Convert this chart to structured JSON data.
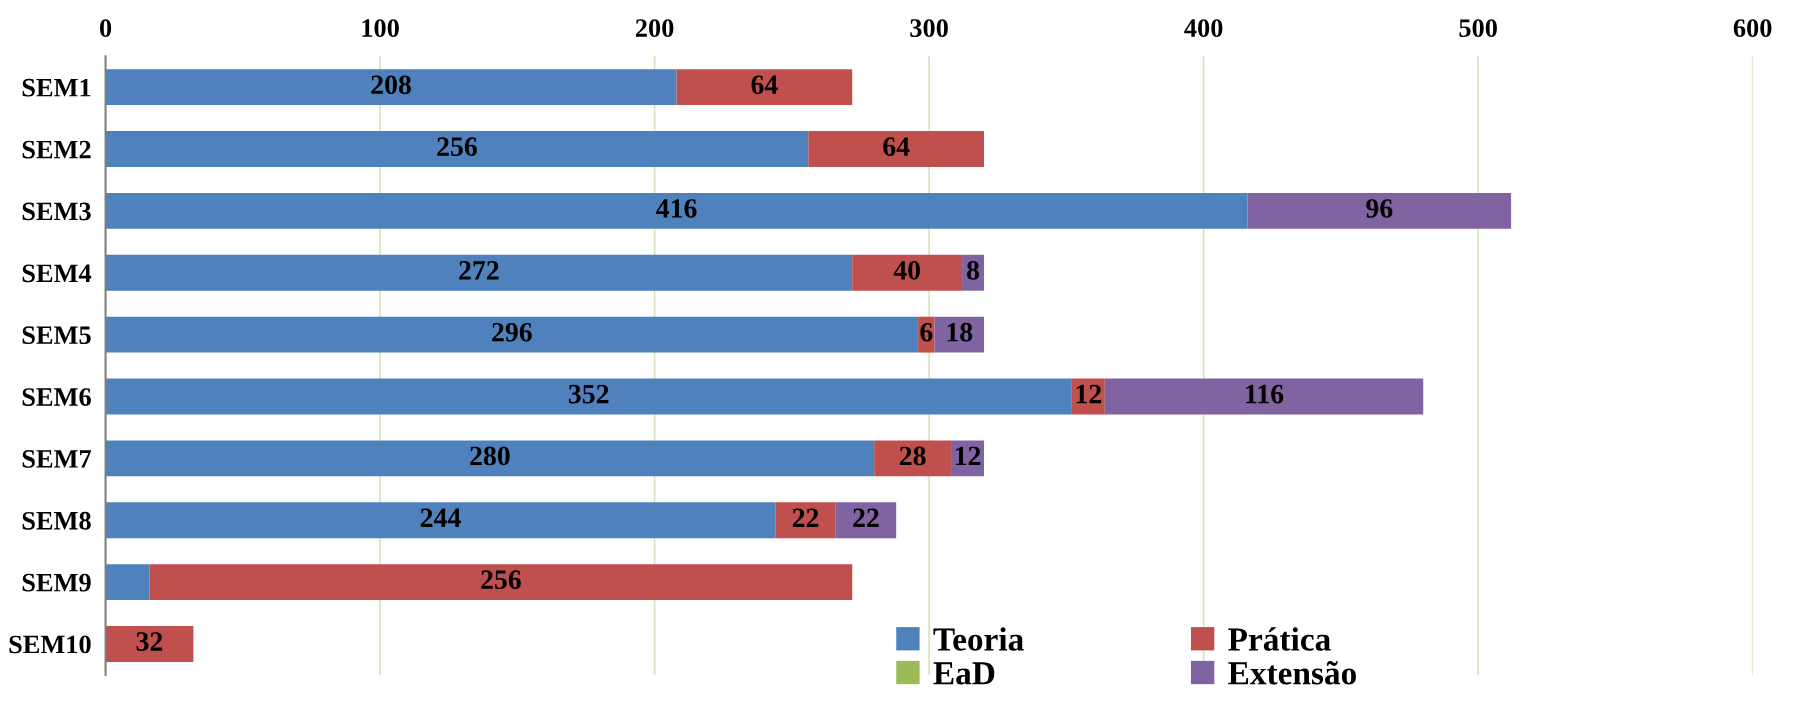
{
  "chart_data": {
    "type": "bar",
    "orientation": "horizontal",
    "stacked": true,
    "categories": [
      "SEM1",
      "SEM2",
      "SEM3",
      "SEM4",
      "SEM5",
      "SEM6",
      "SEM7",
      "SEM8",
      "SEM9",
      "SEM10"
    ],
    "series": [
      {
        "name": "Teoria",
        "color": "#4f81bd",
        "values": [
          208,
          256,
          416,
          272,
          296,
          352,
          280,
          244,
          16,
          null
        ],
        "value_labels": [
          "208",
          "256",
          "416",
          "272",
          "296",
          "352",
          "280",
          "244",
          null,
          null
        ]
      },
      {
        "name": "Prática",
        "color": "#c0504d",
        "values": [
          64,
          64,
          null,
          40,
          6,
          12,
          28,
          22,
          256,
          32
        ],
        "value_labels": [
          "64",
          "64",
          null,
          "40",
          "6",
          "12",
          "28",
          "22",
          "256",
          "32"
        ]
      },
      {
        "name": "EaD",
        "color": "#9bbb59",
        "values": [
          null,
          null,
          null,
          null,
          null,
          null,
          null,
          null,
          null,
          null
        ]
      },
      {
        "name": "Extensão",
        "color": "#8064a2",
        "values": [
          null,
          null,
          96,
          8,
          18,
          116,
          12,
          22,
          null,
          null
        ],
        "value_labels": [
          null,
          null,
          "96",
          "8",
          "18",
          "116",
          "12",
          "22",
          null,
          null
        ]
      }
    ],
    "xlim": [
      0,
      600
    ],
    "xticks": [
      0,
      100,
      200,
      300,
      400,
      500,
      600
    ],
    "grid": "x",
    "legend": "bottom"
  }
}
